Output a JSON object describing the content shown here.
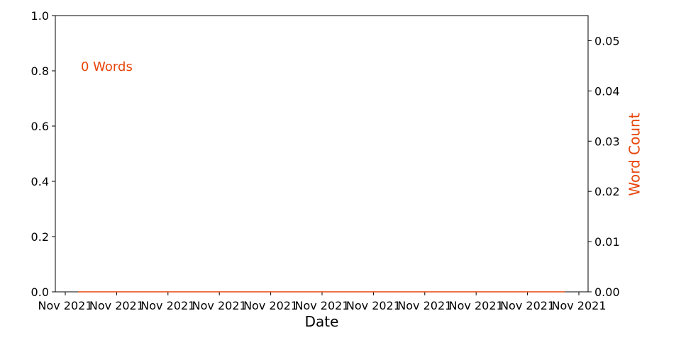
{
  "chart_data": {
    "type": "line",
    "xlabel": "Date",
    "ylabel_left": "",
    "ylabel_right": "Word Count",
    "annotation": "0 Words",
    "left_axis": {
      "ylim": [
        0.0,
        1.0
      ],
      "ticks": [
        "0.0",
        "0.2",
        "0.4",
        "0.6",
        "0.8",
        "1.0"
      ],
      "tick_values": [
        0.0,
        0.2,
        0.4,
        0.6,
        0.8,
        1.0
      ]
    },
    "right_axis": {
      "ylim": [
        0.0,
        0.055
      ],
      "ticks": [
        "0.00",
        "0.01",
        "0.02",
        "0.03",
        "0.04",
        "0.05"
      ],
      "tick_values": [
        0.0,
        0.01,
        0.02,
        0.03,
        0.04,
        0.05
      ]
    },
    "x_ticks": [
      "Nov 2021",
      "Nov 2021",
      "Nov 2021",
      "Nov 2021",
      "Nov 2021",
      "Nov 2021",
      "Nov 2021",
      "Nov 2021",
      "Nov 2021",
      "Nov 2021",
      "Nov 2021"
    ],
    "series": [
      {
        "axis": "right",
        "color": "#e8450a",
        "values": [
          0,
          0
        ]
      }
    ],
    "grid": false,
    "accent_color": "#e8450a"
  }
}
